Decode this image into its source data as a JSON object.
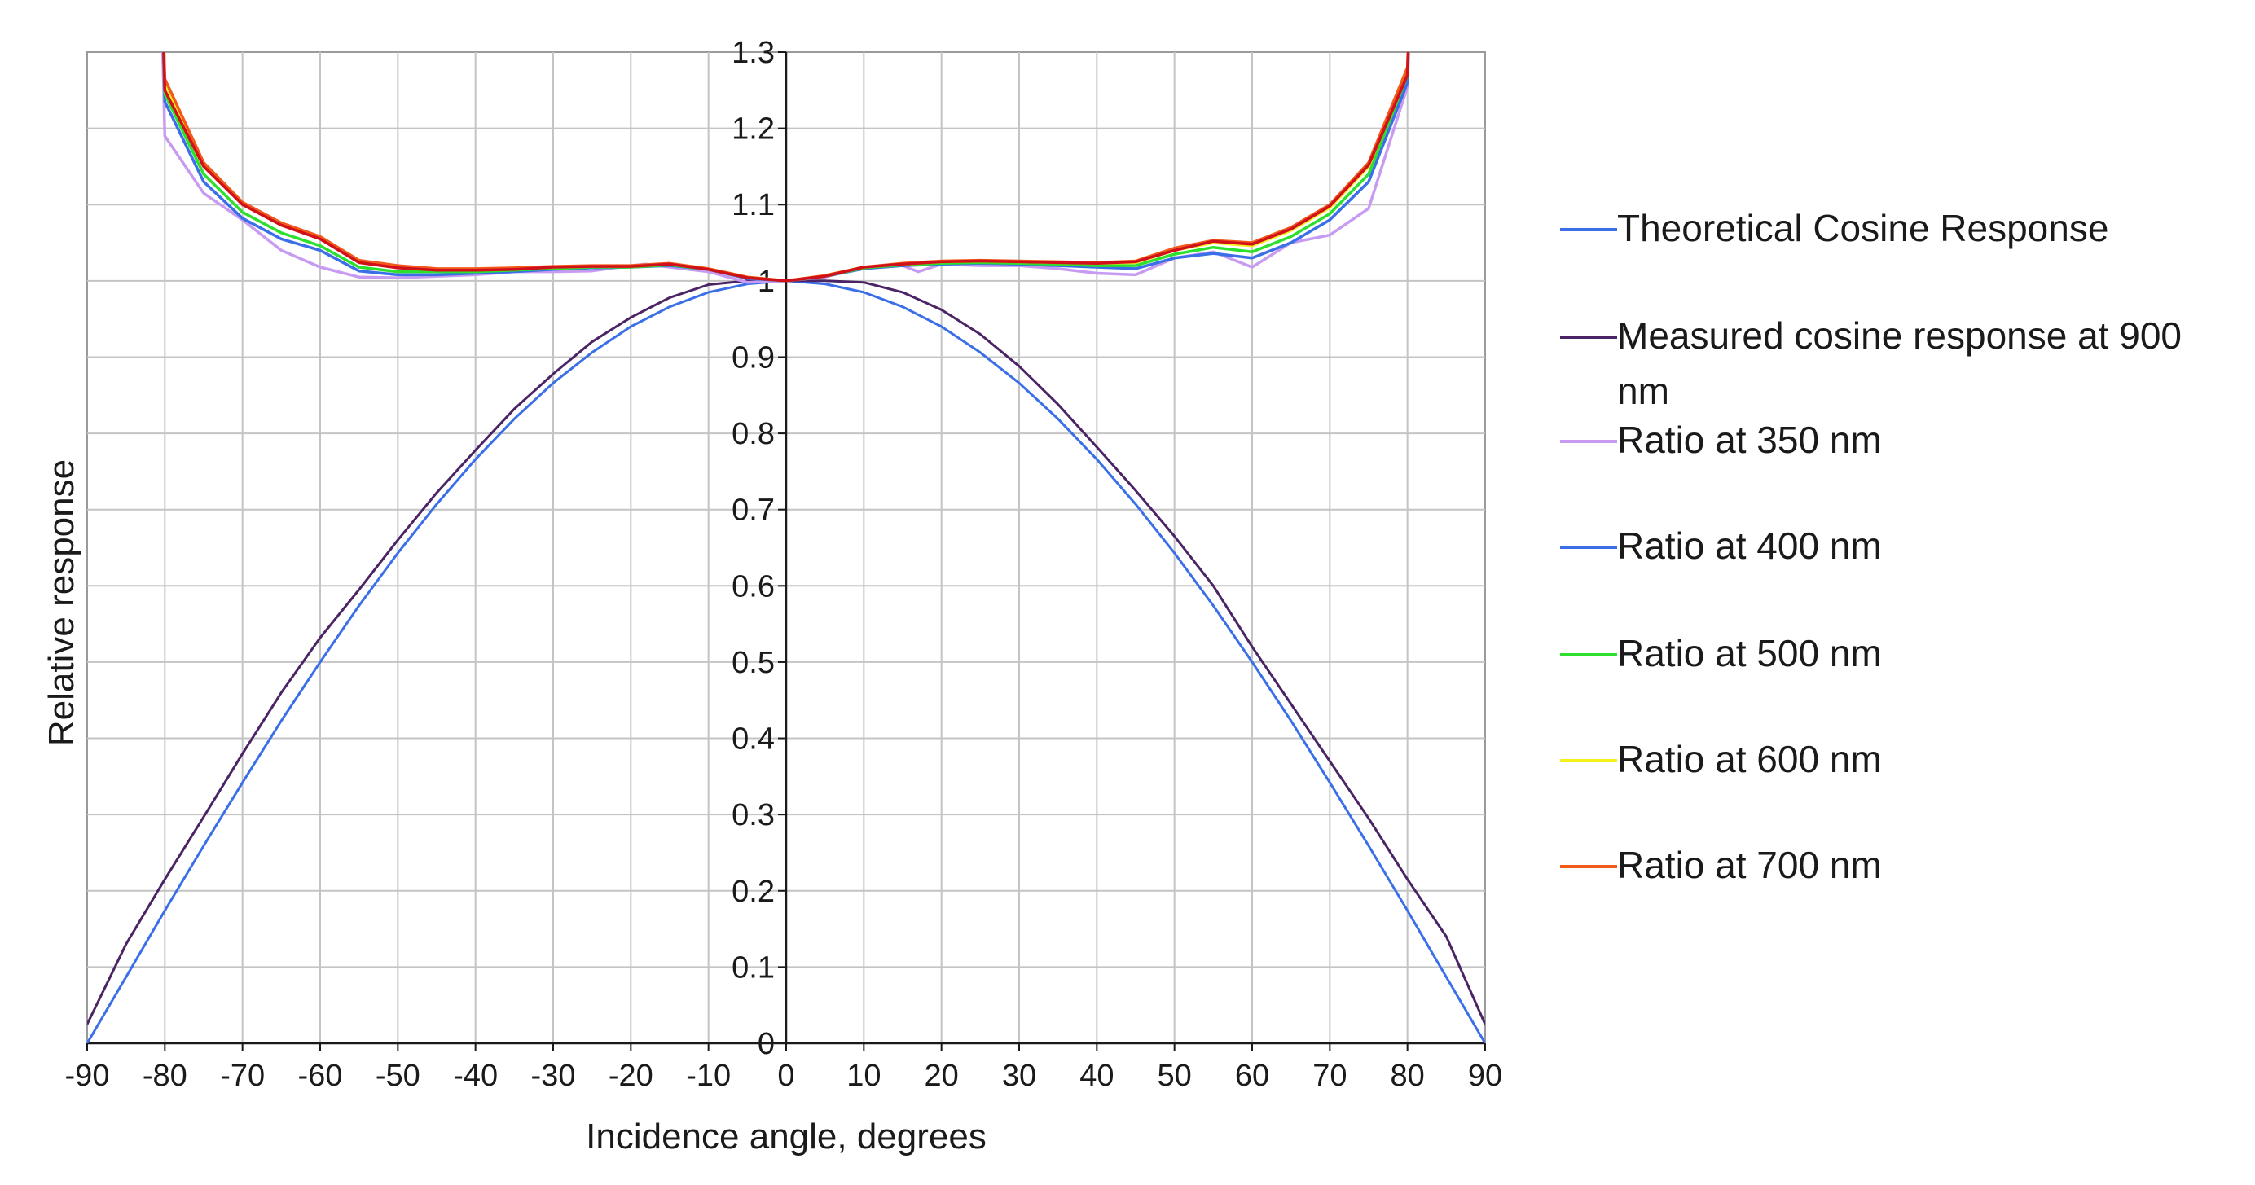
{
  "chart_data": {
    "type": "line",
    "title": "",
    "xlabel": "Incidence angle, degrees",
    "ylabel": "Relative  response",
    "xlim": [
      -90,
      90
    ],
    "ylim": [
      0,
      1.3
    ],
    "x_ticks": [
      -90,
      -80,
      -70,
      -60,
      -50,
      -40,
      -30,
      -20,
      -10,
      0,
      10,
      20,
      30,
      40,
      50,
      60,
      70,
      80,
      90
    ],
    "y_ticks": [
      "0",
      "0.1",
      "0.2",
      "0.3",
      "0.4",
      "0.5",
      "0.6",
      "0.7",
      "0.8",
      "0.9",
      "1",
      "1.1",
      "1.2",
      "1.3"
    ],
    "grid": true,
    "legend_position": "right",
    "series": [
      {
        "name": "Theoretical Cosine Response",
        "color": "#3a6fe8",
        "x": [
          -90,
          -85,
          -80,
          -75,
          -70,
          -65,
          -60,
          -55,
          -50,
          -45,
          -40,
          -35,
          -30,
          -25,
          -20,
          -15,
          -10,
          -5,
          0,
          5,
          10,
          15,
          20,
          25,
          30,
          35,
          40,
          45,
          50,
          55,
          60,
          65,
          70,
          75,
          80,
          85,
          90
        ],
        "y": [
          0,
          0.087,
          0.174,
          0.259,
          0.342,
          0.423,
          0.5,
          0.574,
          0.643,
          0.707,
          0.766,
          0.819,
          0.866,
          0.906,
          0.94,
          0.966,
          0.985,
          0.996,
          1,
          0.996,
          0.985,
          0.966,
          0.94,
          0.906,
          0.866,
          0.819,
          0.766,
          0.707,
          0.643,
          0.574,
          0.5,
          0.423,
          0.342,
          0.259,
          0.174,
          0.087,
          0
        ]
      },
      {
        "name": "Measured cosine response at 900 nm",
        "color": "#4b2466",
        "x": [
          -90,
          -85,
          -80,
          -75,
          -70,
          -65,
          -60,
          -55,
          -50,
          -45,
          -40,
          -35,
          -30,
          -25,
          -20,
          -15,
          -10,
          -5,
          0,
          5,
          10,
          15,
          20,
          25,
          30,
          35,
          40,
          45,
          50,
          55,
          60,
          65,
          70,
          75,
          80,
          85,
          90
        ],
        "y": [
          0.025,
          0.13,
          0.215,
          0.297,
          0.38,
          0.46,
          0.532,
          0.595,
          0.66,
          0.722,
          0.778,
          0.832,
          0.878,
          0.92,
          0.952,
          0.978,
          0.995,
          1.0,
          1,
          1.0,
          0.998,
          0.985,
          0.962,
          0.93,
          0.888,
          0.838,
          0.782,
          0.725,
          0.665,
          0.6,
          0.52,
          0.445,
          0.37,
          0.295,
          0.215,
          0.14,
          0.025
        ]
      },
      {
        "name": "Ratio at 350 nm",
        "color": "#c89bf2",
        "x": [
          -80,
          -75,
          -70,
          -65,
          -60,
          -55,
          -50,
          -45,
          -40,
          -35,
          -30,
          -25,
          -20,
          -18,
          -15,
          -10,
          -5,
          0,
          5,
          10,
          15,
          17,
          20,
          25,
          30,
          35,
          40,
          45,
          50,
          55,
          60,
          65,
          70,
          75,
          80
        ],
        "y": [
          1.19,
          1.115,
          1.08,
          1.04,
          1.018,
          1.005,
          1.004,
          1.006,
          1.008,
          1.012,
          1.012,
          1.013,
          1.02,
          1.022,
          1.018,
          1.012,
          0.998,
          1.0,
          1.005,
          1.018,
          1.02,
          1.012,
          1.022,
          1.02,
          1.02,
          1.016,
          1.01,
          1.008,
          1.03,
          1.038,
          1.018,
          1.05,
          1.06,
          1.095,
          1.255
        ]
      },
      {
        "name": "Ratio at 400 nm",
        "color": "#3a6fe8",
        "x": [
          -80,
          -75,
          -70,
          -65,
          -60,
          -55,
          -50,
          -45,
          -40,
          -35,
          -30,
          -25,
          -20,
          -15,
          -10,
          -5,
          0,
          5,
          10,
          15,
          20,
          25,
          30,
          35,
          40,
          45,
          50,
          55,
          60,
          65,
          70,
          75,
          80
        ],
        "y": [
          1.235,
          1.13,
          1.082,
          1.055,
          1.04,
          1.013,
          1.008,
          1.008,
          1.01,
          1.012,
          1.015,
          1.017,
          1.018,
          1.02,
          1.015,
          1.003,
          1.0,
          1.006,
          1.016,
          1.02,
          1.022,
          1.023,
          1.022,
          1.02,
          1.018,
          1.016,
          1.03,
          1.036,
          1.03,
          1.05,
          1.08,
          1.13,
          1.26
        ]
      },
      {
        "name": "Ratio at 500 nm",
        "color": "#2ee02e",
        "x": [
          -80,
          -75,
          -70,
          -65,
          -60,
          -55,
          -50,
          -45,
          -40,
          -35,
          -30,
          -25,
          -20,
          -15,
          -10,
          -5,
          0,
          5,
          10,
          15,
          20,
          25,
          30,
          35,
          40,
          45,
          50,
          55,
          60,
          65,
          70,
          75,
          80
        ],
        "y": [
          1.245,
          1.14,
          1.09,
          1.063,
          1.046,
          1.018,
          1.012,
          1.012,
          1.012,
          1.014,
          1.016,
          1.018,
          1.018,
          1.021,
          1.015,
          1.004,
          1.0,
          1.006,
          1.017,
          1.021,
          1.023,
          1.024,
          1.023,
          1.022,
          1.02,
          1.02,
          1.035,
          1.044,
          1.038,
          1.058,
          1.088,
          1.14,
          1.27
        ]
      },
      {
        "name": "Ratio at 600 nm",
        "color": "#f5f01a",
        "x": [
          -80,
          -75,
          -70,
          -65,
          -60,
          -55,
          -50,
          -45,
          -40,
          -35,
          -30,
          -25,
          -20,
          -15,
          -10,
          -5,
          0,
          5,
          10,
          15,
          20,
          25,
          30,
          35,
          40,
          45,
          50,
          55,
          60,
          65,
          70,
          75,
          80
        ],
        "y": [
          1.26,
          1.15,
          1.1,
          1.073,
          1.055,
          1.025,
          1.018,
          1.015,
          1.015,
          1.016,
          1.018,
          1.019,
          1.019,
          1.022,
          1.016,
          1.005,
          1.0,
          1.007,
          1.018,
          1.022,
          1.025,
          1.026,
          1.025,
          1.024,
          1.023,
          1.024,
          1.04,
          1.05,
          1.046,
          1.066,
          1.096,
          1.15,
          1.275
        ]
      },
      {
        "name": "Ratio at 700 nm",
        "color": "#f2591a",
        "x": [
          -80,
          -75,
          -70,
          -65,
          -60,
          -55,
          -50,
          -45,
          -40,
          -35,
          -30,
          -25,
          -20,
          -15,
          -10,
          -5,
          0,
          5,
          10,
          15,
          20,
          25,
          30,
          35,
          40,
          45,
          50,
          55,
          60,
          65,
          70,
          75,
          80
        ],
        "y": [
          1.265,
          1.155,
          1.103,
          1.076,
          1.058,
          1.027,
          1.02,
          1.016,
          1.016,
          1.017,
          1.019,
          1.02,
          1.02,
          1.023,
          1.016,
          1.005,
          1.0,
          1.007,
          1.018,
          1.023,
          1.026,
          1.027,
          1.026,
          1.025,
          1.024,
          1.026,
          1.043,
          1.053,
          1.05,
          1.07,
          1.1,
          1.155,
          1.28
        ]
      },
      {
        "name": "",
        "color": "#d0101a",
        "x": [
          -80,
          -75,
          -70,
          -65,
          -60,
          -55,
          -50,
          -45,
          -40,
          -35,
          -30,
          -25,
          -20,
          -15,
          -10,
          -5,
          0,
          5,
          10,
          15,
          20,
          25,
          30,
          35,
          40,
          45,
          50,
          55,
          60,
          65,
          70,
          75,
          80
        ],
        "y": [
          1.25,
          1.15,
          1.1,
          1.073,
          1.055,
          1.024,
          1.017,
          1.014,
          1.014,
          1.015,
          1.018,
          1.019,
          1.019,
          1.022,
          1.015,
          1.004,
          1.0,
          1.006,
          1.018,
          1.022,
          1.025,
          1.026,
          1.025,
          1.024,
          1.023,
          1.025,
          1.04,
          1.052,
          1.048,
          1.068,
          1.098,
          1.152,
          1.27
        ]
      }
    ],
    "legend": [
      {
        "label": "Theoretical Cosine Response",
        "color": "#3a6fe8"
      },
      {
        "label": "Measured cosine response at 900",
        "label_cont": "nm",
        "color": "#4b2466"
      },
      {
        "label": "Ratio at 350 nm",
        "color": "#c89bf2"
      },
      {
        "label": "Ratio at 400 nm",
        "color": "#3a6fe8"
      },
      {
        "label": "Ratio at 500 nm",
        "color": "#2ee02e"
      },
      {
        "label": "Ratio at 600 nm",
        "color": "#f5f01a"
      },
      {
        "label": "Ratio at 700 nm",
        "color": "#f2591a"
      }
    ]
  }
}
